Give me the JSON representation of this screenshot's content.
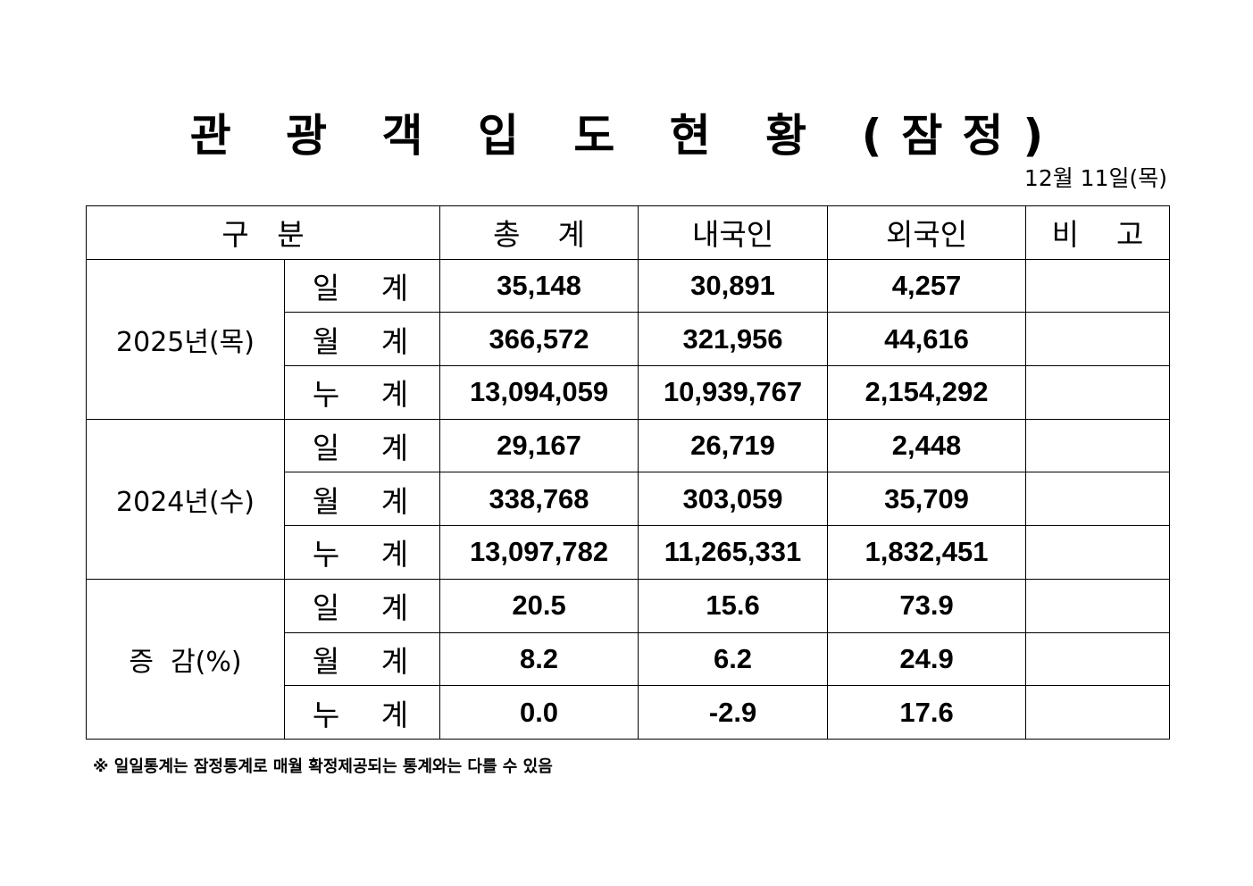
{
  "title": "관 광 객 입 도 현 황 (잠정)",
  "date": "12월  11일(목)",
  "table": {
    "headers": [
      "구   분",
      "총    계",
      "내국인",
      "외국인",
      "비    고"
    ],
    "groups": [
      {
        "label": "2025년(목)",
        "rows": [
          {
            "sub": "일 계",
            "total": "35,148",
            "domestic": "30,891",
            "foreign": "4,257",
            "note": ""
          },
          {
            "sub": "월 계",
            "total": "366,572",
            "domestic": "321,956",
            "foreign": "44,616",
            "note": ""
          },
          {
            "sub": "누 계",
            "total": "13,094,059",
            "domestic": "10,939,767",
            "foreign": "2,154,292",
            "note": ""
          }
        ]
      },
      {
        "label": "2024년(수)",
        "rows": [
          {
            "sub": "일 계",
            "total": "29,167",
            "domestic": "26,719",
            "foreign": "2,448",
            "note": ""
          },
          {
            "sub": "월 계",
            "total": "338,768",
            "domestic": "303,059",
            "foreign": "35,709",
            "note": ""
          },
          {
            "sub": "누 계",
            "total": "13,097,782",
            "domestic": "11,265,331",
            "foreign": "1,832,451",
            "note": ""
          }
        ]
      },
      {
        "label": "증  감(%)",
        "rows": [
          {
            "sub": "일 계",
            "total": "20.5",
            "domestic": "15.6",
            "foreign": "73.9",
            "note": ""
          },
          {
            "sub": "월 계",
            "total": "8.2",
            "domestic": "6.2",
            "foreign": "24.9",
            "note": ""
          },
          {
            "sub": "누 계",
            "total": "0.0",
            "domestic": "-2.9",
            "foreign": "17.6",
            "note": ""
          }
        ]
      }
    ]
  },
  "footnote": "※ 일일통계는 잠정통계로 매월 확정제공되는 통계와는 다를 수 있음"
}
